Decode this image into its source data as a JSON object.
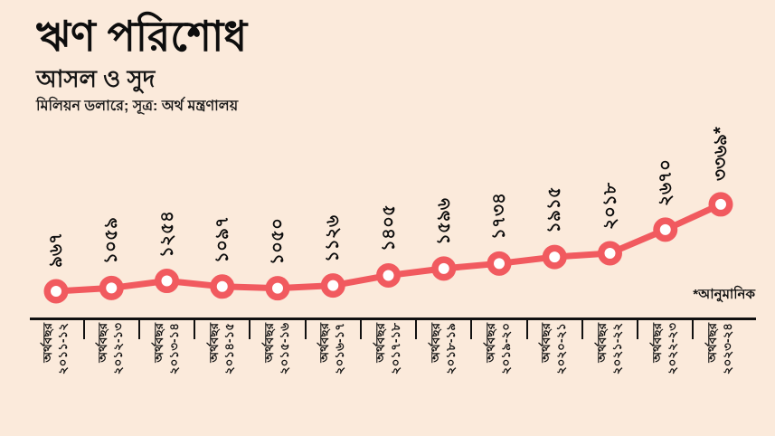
{
  "header": {
    "title": "ঋণ পরিশোধ",
    "subtitle": "আসল ও সুদ",
    "source_line": "মিলিয়ন ডলারে; সূত্র: অর্থ মন্ত্রণালয়"
  },
  "footnote": "*আনুমানিক",
  "colors": {
    "background": "#fbeadb",
    "line": "#f15a5f",
    "dot_center": "#ffffff",
    "text": "#101010",
    "axis": "#111111"
  },
  "chart_data": {
    "type": "line",
    "title": "ঋণ পরিশোধ — আসল ও সুদ",
    "unit_label": "মিলিয়ন ডলারে",
    "source": "অর্থ মন্ত্রণালয়",
    "category_prefix": "অর্থবছর",
    "categories": [
      "২০১১-১২",
      "২০১২-১৩",
      "২০১৩-১৪",
      "২০১৪-১৫",
      "২০১৫-১৬",
      "২০১৬-১৭",
      "২০১৭-১৮",
      "২০১৮-১৯",
      "২০১৯-২০",
      "২০২০-২১",
      "২০২১-২২",
      "২০২২-২৩",
      "২০২৩-২৪"
    ],
    "values": [
      967,
      1059,
      1254,
      1097,
      1050,
      1126,
      1405,
      1596,
      1734,
      1915,
      2018,
      2670,
      3369
    ],
    "value_labels": [
      "৯৬৭",
      "১০৫৯",
      "১২৫৪",
      "১০৯৭",
      "১০৫০",
      "১১২৬",
      "১৪০৫",
      "১৫৯৬",
      "১৭৩৪",
      "১৯১৫",
      "২০১৮",
      "২৬৭০",
      "৩৩৬৯*"
    ],
    "last_value_estimated": true,
    "estimated_note": "*আনুমানিক",
    "gridlines": false,
    "legend": false,
    "y_axis_shown": false
  }
}
